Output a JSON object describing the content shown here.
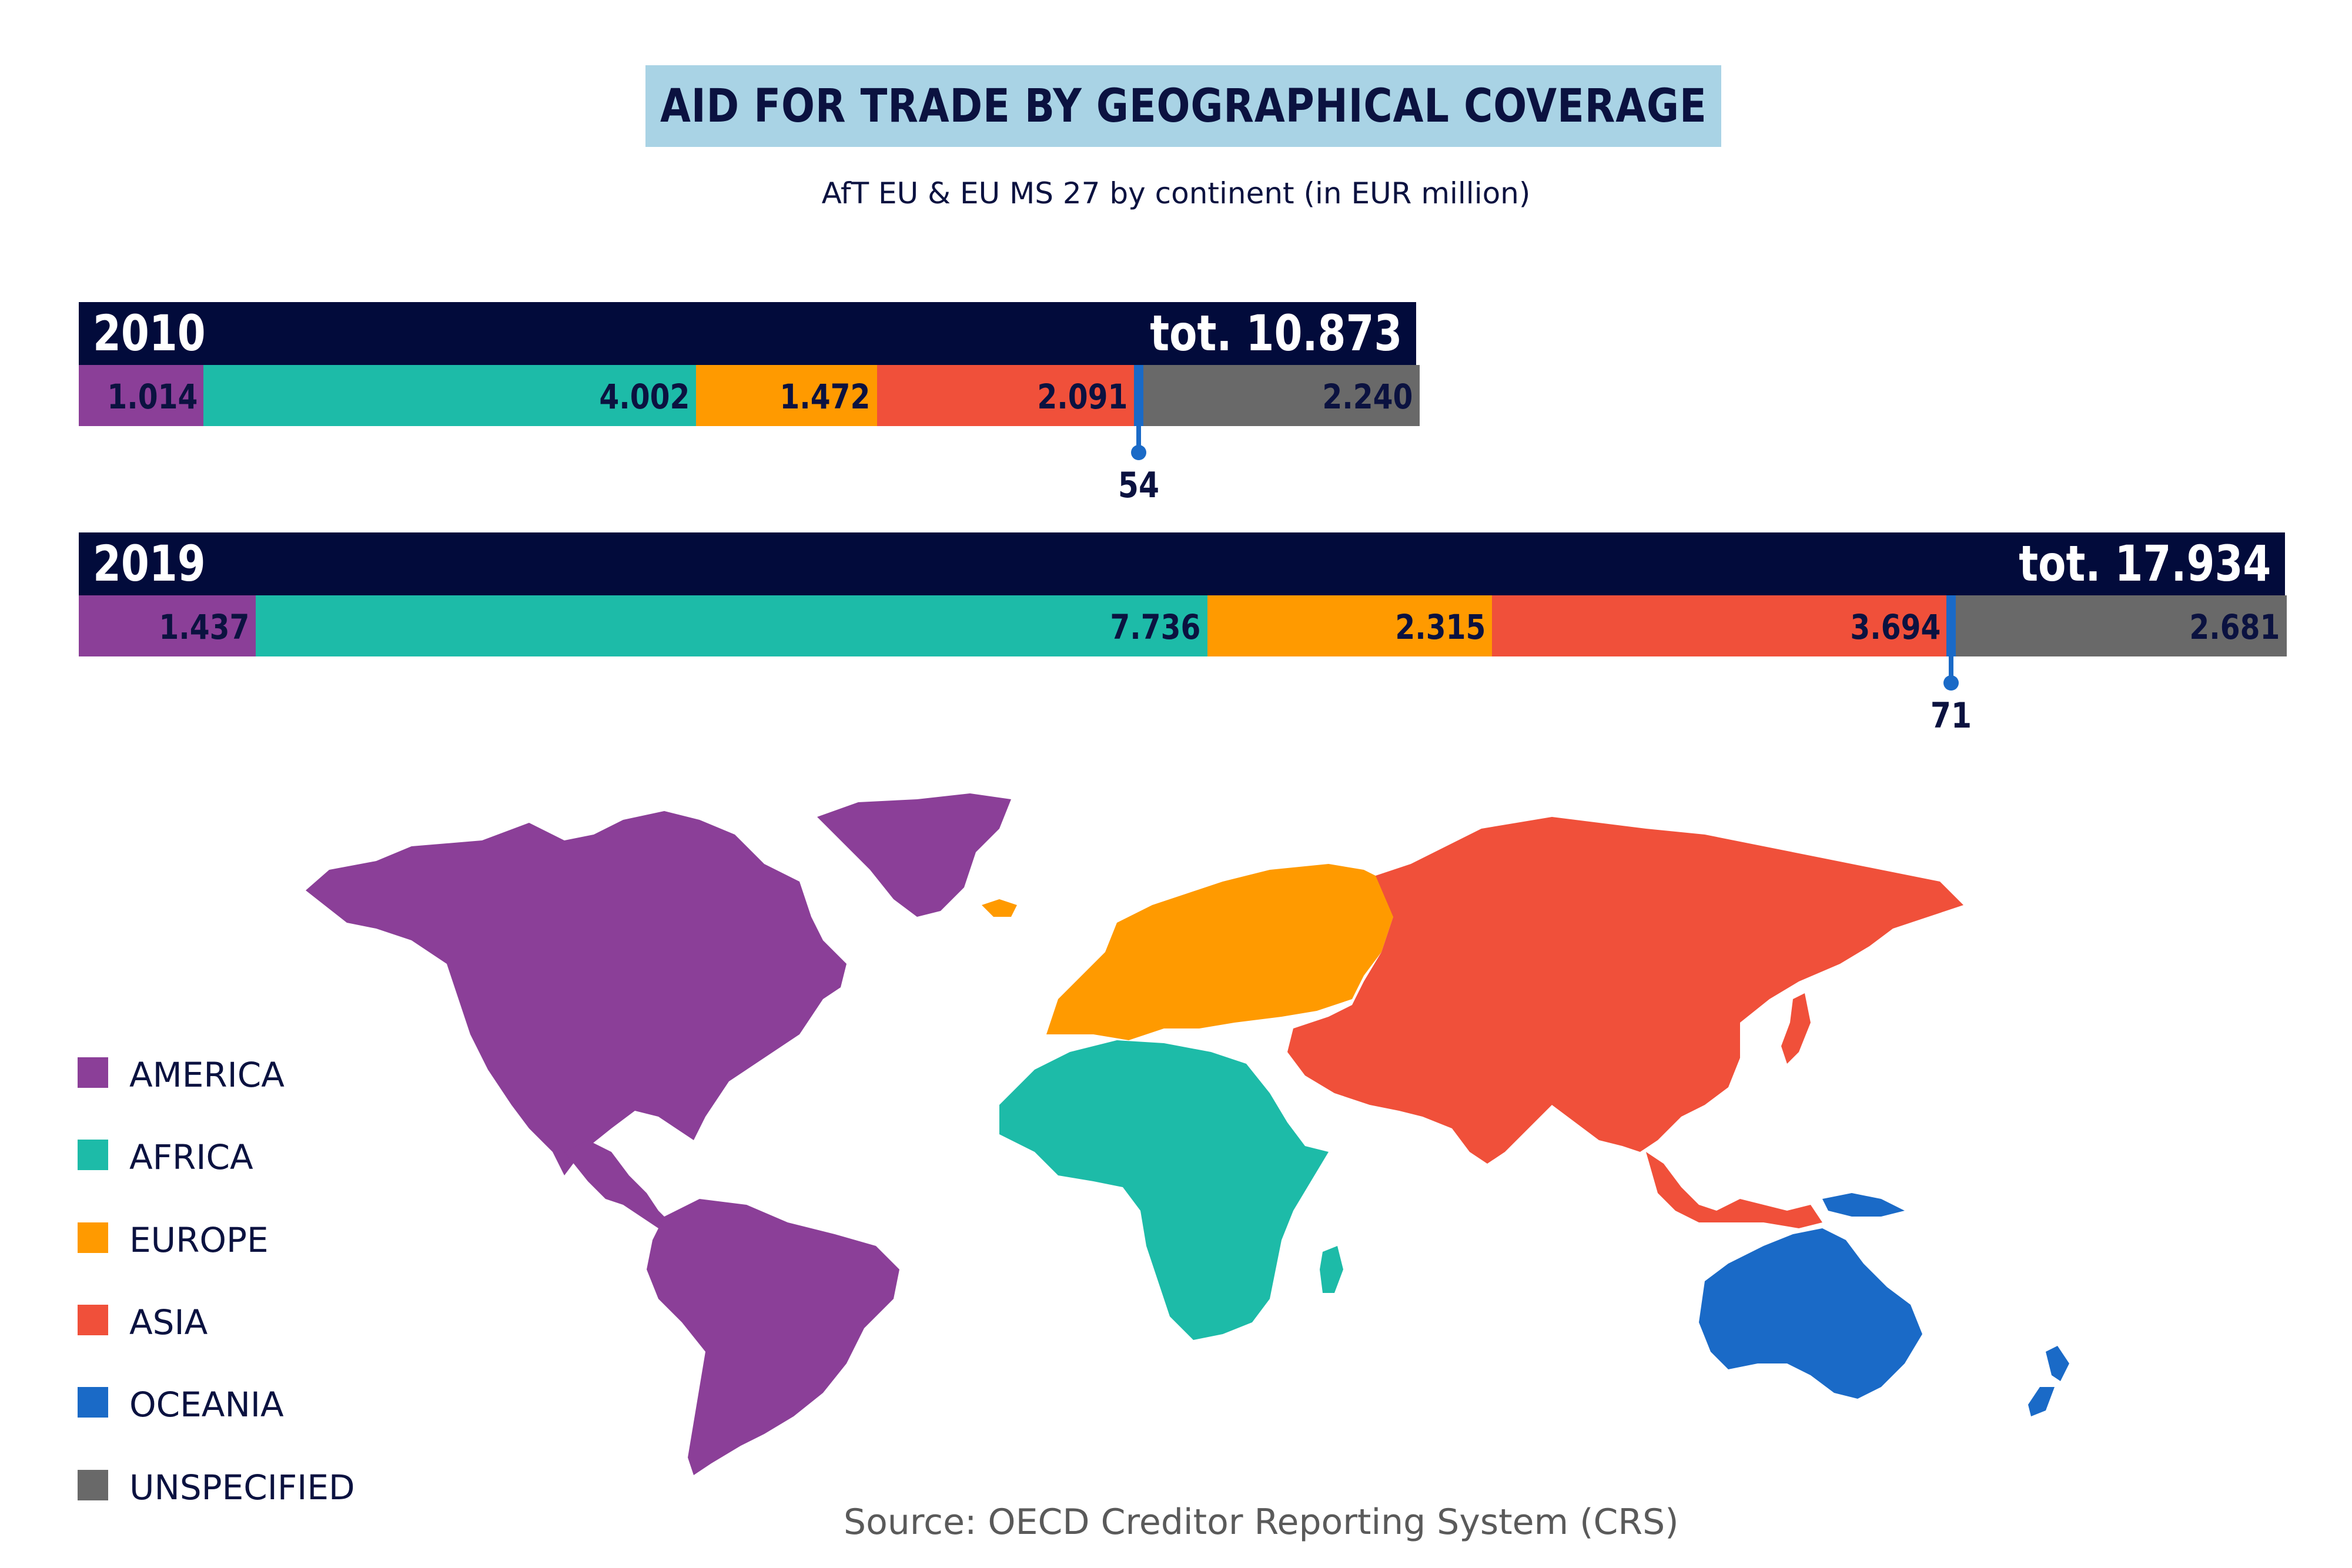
{
  "title": "AID FOR TRADE BY GEOGRAPHICAL COVERAGE",
  "subtitle": "AfT EU & EU MS 27 by continent (in EUR million)",
  "source": "Source: OECD Creditor Reporting System (CRS)",
  "colors": {
    "header": "#020b3b",
    "title_bg": "#a9d3e5",
    "america": "#8b3f98",
    "africa": "#1dbba8",
    "europe": "#ff9a00",
    "asia": "#f0503a",
    "oceania": "#1a6ac7",
    "unspecified": "#696969"
  },
  "chart_data": {
    "type": "bar",
    "orientation": "horizontal-stacked",
    "categories": [
      "AMERICA",
      "AFRICA",
      "EUROPE",
      "ASIA",
      "OCEANIA",
      "UNSPECIFIED"
    ],
    "bars": [
      {
        "year": "2010",
        "total_label": "tot. 10.873",
        "total": 10873,
        "values": [
          1014,
          4002,
          1472,
          2091,
          54,
          2240
        ],
        "labels": [
          "1.014",
          "4.002",
          "1.472",
          "2.091",
          "54",
          "2.240"
        ]
      },
      {
        "year": "2019",
        "total_label": "tot. 17.934",
        "total": 17934,
        "values": [
          1437,
          7736,
          2315,
          3694,
          71,
          2681
        ],
        "labels": [
          "1.437",
          "7.736",
          "2.315",
          "3.694",
          "71",
          "2.681"
        ]
      }
    ]
  },
  "legend": {
    "items": [
      {
        "label": "AMERICA",
        "color": "#8b3f98"
      },
      {
        "label": "AFRICA",
        "color": "#1dbba8"
      },
      {
        "label": "EUROPE",
        "color": "#ff9a00"
      },
      {
        "label": "ASIA",
        "color": "#f0503a"
      },
      {
        "label": "OCEANIA",
        "color": "#1a6ac7"
      },
      {
        "label": "UNSPECIFIED",
        "color": "#696969"
      }
    ]
  }
}
